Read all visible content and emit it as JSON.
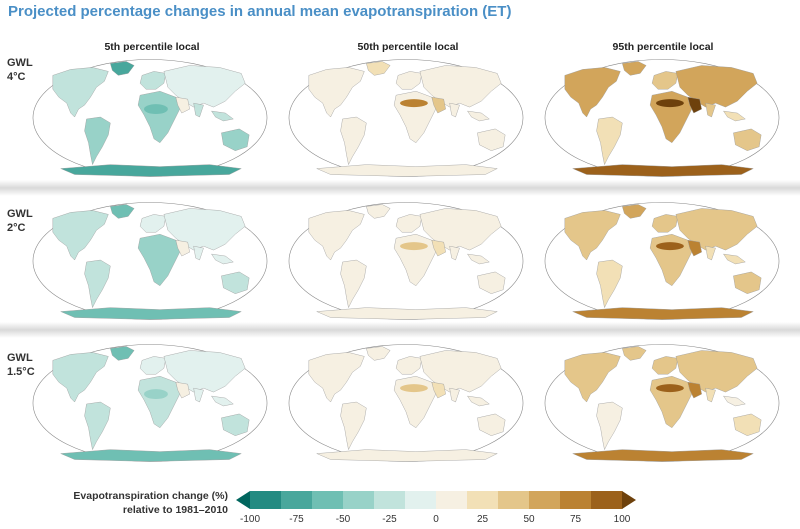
{
  "title": "Projected percentage changes in annual mean evapotranspiration (ET)",
  "columns": [
    {
      "label": "5th percentile local",
      "key": "p5"
    },
    {
      "label": "50th percentile local",
      "key": "p50"
    },
    {
      "label": "95th percentile local",
      "key": "p95"
    }
  ],
  "rows": [
    {
      "label_line1": "GWL",
      "label_line2": "4°C",
      "key": "gwl4"
    },
    {
      "label_line1": "GWL",
      "label_line2": "2°C",
      "key": "gwl2"
    },
    {
      "label_line1": "GWL",
      "label_line2": "1.5°C",
      "key": "gwl15"
    }
  ],
  "legend": {
    "label_line1": "Evapotranspiration change (%)",
    "label_line2": "relative to 1981–2010",
    "ticks": [
      "-100",
      "-75",
      "-50",
      "-25",
      "0",
      "25",
      "50",
      "75",
      "100"
    ],
    "min": -100,
    "max": 100,
    "colors": [
      "#01665e",
      "#238b82",
      "#48a79c",
      "#6fbfb3",
      "#98d2c8",
      "#c1e3dc",
      "#e2f1ee",
      "#f6f0e2",
      "#f2e0b6",
      "#e4c68a",
      "#d2a55b",
      "#bb8232",
      "#9c611b",
      "#6e410c"
    ]
  },
  "map_intensity": {
    "p5": {
      "gwl4": 0.9,
      "gwl2": 0.7,
      "gwl15": 0.65
    },
    "p50": {
      "gwl4": 0.6,
      "gwl2": 0.35,
      "gwl15": 0.3
    },
    "p95": {
      "gwl4": 1.0,
      "gwl2": 0.8,
      "gwl15": 0.75
    }
  }
}
